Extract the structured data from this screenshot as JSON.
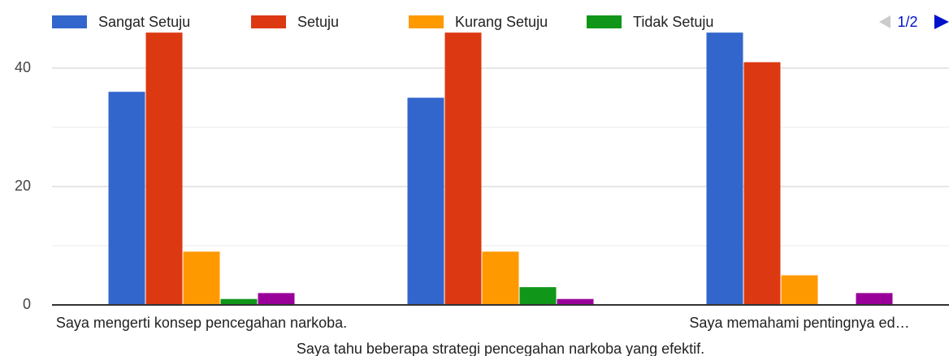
{
  "chart_data": {
    "type": "bar",
    "categories": [
      "Saya mengerti konsep pencegahan narkoba.",
      "Saya tahu beberapa strategi pencegahan narkoba yang efektif.",
      "Saya memahami pentingnya ed…"
    ],
    "series": [
      {
        "name": "Sangat Setuju",
        "color": "#3366cc",
        "values": [
          36,
          35,
          46
        ]
      },
      {
        "name": "Setuju",
        "color": "#dc3912",
        "values": [
          46,
          46,
          41
        ]
      },
      {
        "name": "Kurang Setuju",
        "color": "#ff9900",
        "values": [
          9,
          9,
          5
        ]
      },
      {
        "name": "Tidak Setuju",
        "color": "#109618",
        "values": [
          1,
          3,
          0
        ]
      },
      {
        "color": "#990099",
        "values": [
          2,
          1,
          2
        ]
      }
    ],
    "legend_page": "1/2",
    "ylim": [
      0,
      50
    ],
    "yticks": [
      0,
      20,
      40
    ],
    "yminor": [
      10,
      30
    ],
    "grid": true,
    "legend": "top"
  }
}
